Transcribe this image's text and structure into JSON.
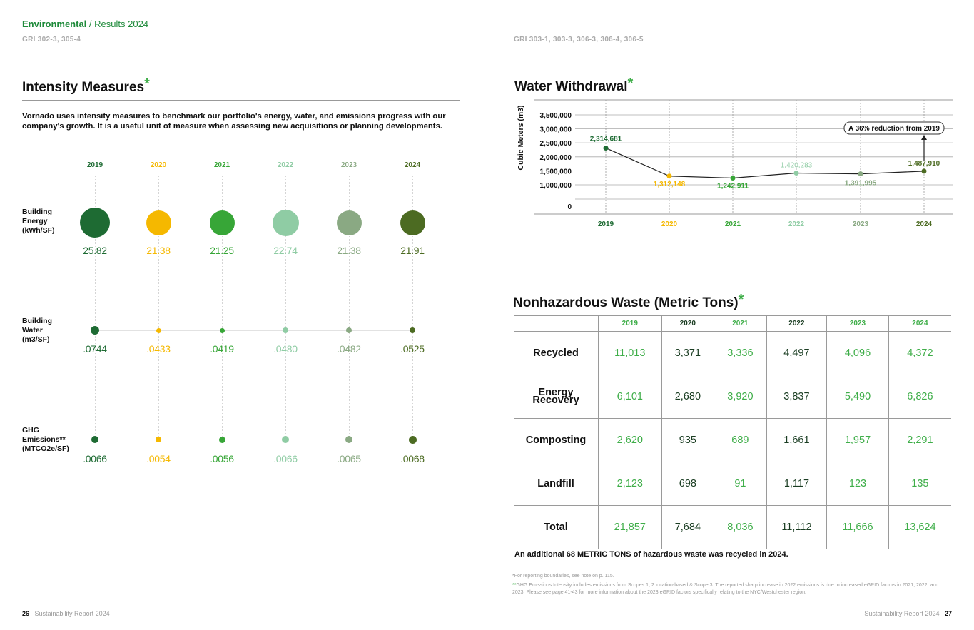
{
  "header": {
    "section": "Environmental",
    "subsection": "/ Results 2024"
  },
  "left": {
    "gri": "GRI 302-3, 305-4",
    "title": "Intensity Measures",
    "asterisk": "*",
    "intro": "Vornado uses intensity measures to benchmark our portfolio's energy, water, and emissions progress with our company's growth. It is a useful unit of measure when assessing new acquisitions or planning developments.",
    "years": [
      "2019",
      "2020",
      "2021",
      "2022",
      "2023",
      "2024"
    ],
    "year_colors": [
      "#1e6b33",
      "#f5b800",
      "#37a637",
      "#8fcca4",
      "#8aa983",
      "#4c6b22"
    ],
    "rows": [
      {
        "label": [
          "Building",
          "Energy",
          "(kWh/SF)"
        ],
        "values": [
          "25.82",
          "21.38",
          "21.25",
          "22.74",
          "21.38",
          "21.91"
        ]
      },
      {
        "label": [
          "Building",
          "Water",
          "(m3/SF)"
        ],
        "values": [
          ".0744",
          ".0433",
          ".0419",
          ".0480",
          ".0482",
          ".0525"
        ]
      },
      {
        "label": [
          "GHG",
          "Emissions**",
          "(MTCO2e/SF)"
        ],
        "values": [
          ".0066",
          ".0054",
          ".0056",
          ".0066",
          ".0065",
          ".0068"
        ]
      }
    ],
    "footer_page": "26",
    "footer_text": "Sustainability Report 2024"
  },
  "right": {
    "gri": "GRI 303-1, 303-3, 306-3, 306-4, 306-5",
    "water_title": "Water Withdrawal",
    "waste_title": "Nonhazardous Waste (Metric Tons)",
    "asterisk": "*",
    "waste_table": {
      "years": [
        "2019",
        "2020",
        "2021",
        "2022",
        "2023",
        "2024"
      ],
      "rows": [
        {
          "label": "Recycled",
          "values": [
            "11,013",
            "3,371",
            "3,336",
            "4,497",
            "4,096",
            "4,372"
          ]
        },
        {
          "label": "Energy Recovery",
          "values": [
            "6,101",
            "2,680",
            "3,920",
            "3,837",
            "5,490",
            "6,826"
          ]
        },
        {
          "label": "Composting",
          "values": [
            "2,620",
            "935",
            "689",
            "1,661",
            "1,957",
            "2,291"
          ]
        },
        {
          "label": "Landfill",
          "values": [
            "2,123",
            "698",
            "91",
            "1,117",
            "123",
            "135"
          ]
        },
        {
          "label": "Total",
          "values": [
            "21,857",
            "7,684",
            "8,036",
            "11,112",
            "11,666",
            "13,624"
          ]
        }
      ]
    },
    "hazardous_note": "An additional 68 METRIC TONS of hazardous waste was recycled in 2024.",
    "footnote1": "*For reporting boundaries, see note on p. 115.",
    "footnote2_mark": "**",
    "footnote2": "GHG Emissions Intensity includes emissions from Scopes 1, 2 location-based & Scope 3. The reported sharp increase in 2022 emissions is due to increased eGRID factors in 2021, 2022, and 2023. Please see page 41-43 for more information about the 2023 eGRID factors specifically relating to the NYC/Westchester region.",
    "footer_text": "Sustainability Report 2024",
    "footer_page": "27"
  },
  "chart_data": {
    "type": "line",
    "title": "Water Withdrawal",
    "ylabel": "Cubic Meters (m3)",
    "x": [
      "2019",
      "2020",
      "2021",
      "2022",
      "2023",
      "2024"
    ],
    "values": [
      2314681,
      1312148,
      1242911,
      1420283,
      1391995,
      1487910
    ],
    "value_labels": [
      "2,314,681",
      "1,312,148",
      "1,242,911",
      "1,420,283",
      "1,391,995",
      "1,487,910"
    ],
    "y_ticks": [
      "3,500,000",
      "3,000,000",
      "2,500,000",
      "2,000,000",
      "1,500,000",
      "1,000,000",
      "0"
    ],
    "ylim": [
      0,
      3500000
    ],
    "annotation": "A 36% reduction from 2019",
    "colors": [
      "#1e6b33",
      "#f5b800",
      "#37a637",
      "#8fcca4",
      "#8aa983",
      "#4c6b22"
    ]
  }
}
